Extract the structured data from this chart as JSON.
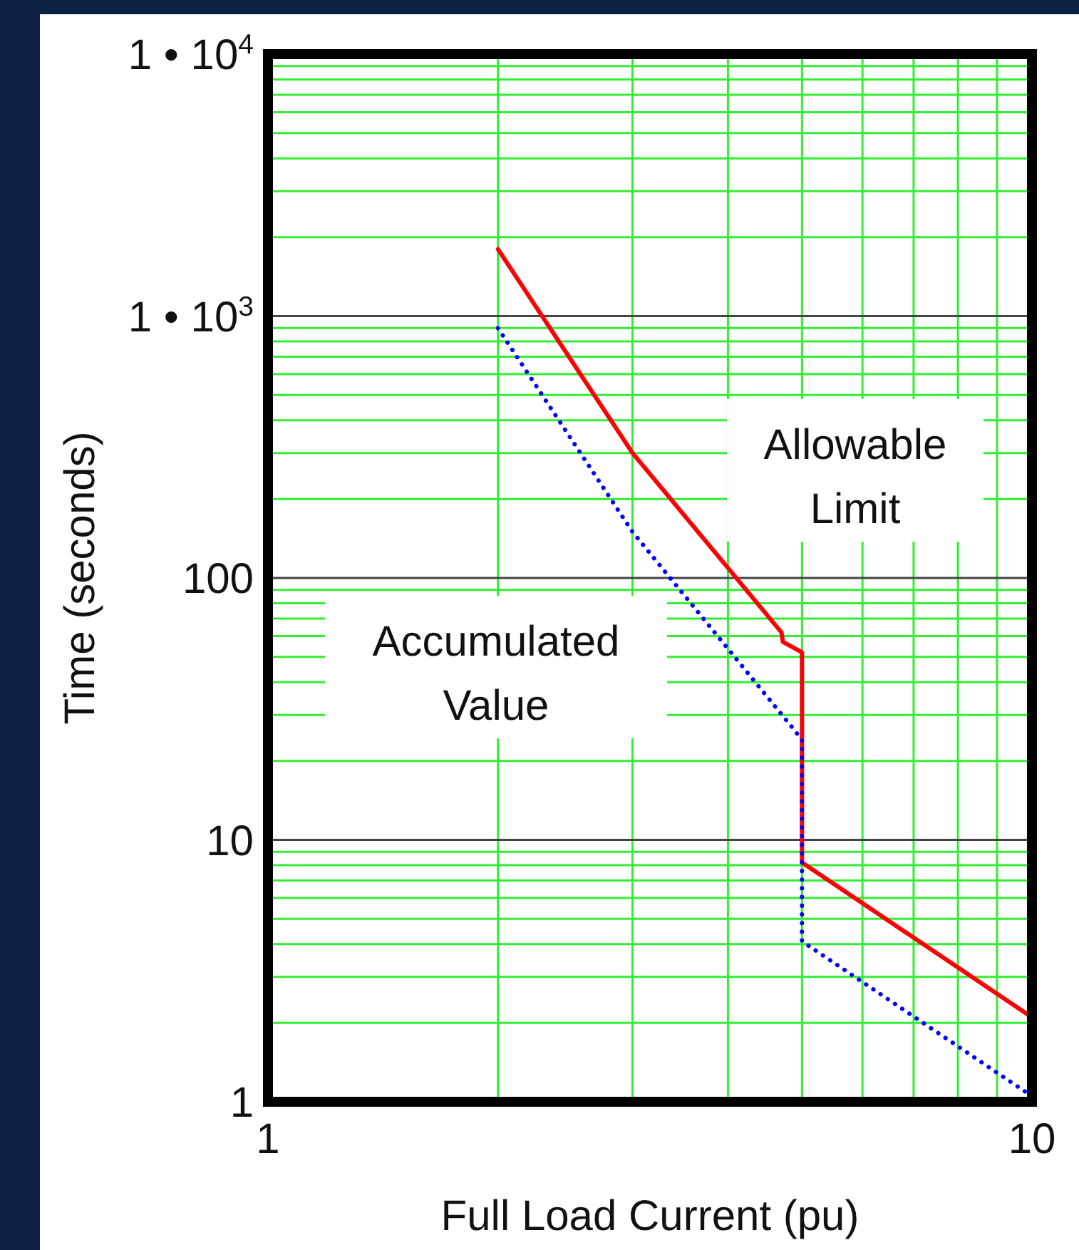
{
  "chart_data": {
    "type": "line",
    "xlabel": "Full Load Current (pu)",
    "ylabel": "Time (seconds)",
    "log": "xy",
    "xlim": [
      1,
      10
    ],
    "ylim": [
      1,
      10000
    ],
    "xticks": [
      1,
      {
        "value": 2,
        "label": null
      },
      {
        "value": 3,
        "label": null
      },
      {
        "value": 4,
        "label": null
      },
      {
        "value": 5,
        "label": null
      },
      {
        "value": 6,
        "label": null
      },
      {
        "value": 7,
        "label": null
      },
      {
        "value": 8,
        "label": null
      },
      {
        "value": 9,
        "label": null
      },
      10
    ],
    "yticks": [
      1,
      {
        "value": 2,
        "label": null
      },
      {
        "value": 3,
        "label": null
      },
      {
        "value": 4,
        "label": null
      },
      {
        "value": 5,
        "label": null
      },
      {
        "value": 6,
        "label": null
      },
      {
        "value": 7,
        "label": null
      },
      {
        "value": 8,
        "label": null
      },
      {
        "value": 9,
        "label": null
      },
      10,
      {
        "value": 20,
        "label": null
      },
      {
        "value": 30,
        "label": null
      },
      {
        "value": 40,
        "label": null
      },
      {
        "value": 50,
        "label": null
      },
      {
        "value": 60,
        "label": null
      },
      {
        "value": 70,
        "label": null
      },
      {
        "value": 80,
        "label": null
      },
      {
        "value": 90,
        "label": null
      },
      100,
      {
        "value": 200,
        "label": null
      },
      {
        "value": 300,
        "label": null
      },
      {
        "value": 400,
        "label": null
      },
      {
        "value": 500,
        "label": null
      },
      {
        "value": 600,
        "label": null
      },
      {
        "value": 700,
        "label": null
      },
      {
        "value": 800,
        "label": null
      },
      {
        "value": 900,
        "label": null
      },
      {
        "value": 1000,
        "label": "1 • 10$^{3}$"
      },
      {
        "value": 2000,
        "label": null
      },
      {
        "value": 3000,
        "label": null
      },
      {
        "value": 4000,
        "label": null
      },
      {
        "value": 5000,
        "label": null
      },
      {
        "value": 6000,
        "label": null
      },
      {
        "value": 7000,
        "label": null
      },
      {
        "value": 8000,
        "label": null
      },
      {
        "value": 9000,
        "label": null
      },
      {
        "value": 10000,
        "label": "1 • 10$^{4}$"
      }
    ],
    "grid": true,
    "series": [
      {
        "color": "#ff0000",
        "line_style": "solid",
        "x": [
          2,
          3,
          4.7,
          4.72,
          5,
          5,
          10
        ],
        "values": [
          1800,
          300,
          62,
          57,
          52,
          8.2,
          2.1
        ]
      },
      {
        "color": "#0000ff",
        "line_style": "dotted",
        "x": [
          2,
          3,
          4.9,
          5,
          5,
          10
        ],
        "values": [
          900,
          150,
          26,
          24,
          4.1,
          1.05
        ]
      }
    ],
    "annotations": [
      "Allowable Limit",
      "Accumulated Value"
    ]
  }
}
